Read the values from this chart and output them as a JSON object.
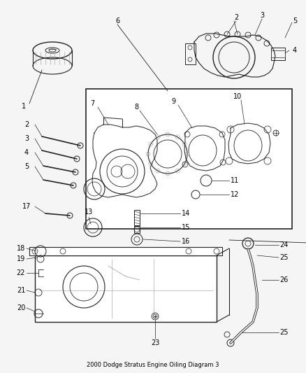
{
  "title": "2000 Dodge Stratus Engine Oiling Diagram 3",
  "bg_color": "#f5f5f5",
  "fig_width": 4.38,
  "fig_height": 5.33,
  "dpi": 100,
  "gray": "#555555",
  "dgray": "#222222",
  "lgray": "#999999"
}
